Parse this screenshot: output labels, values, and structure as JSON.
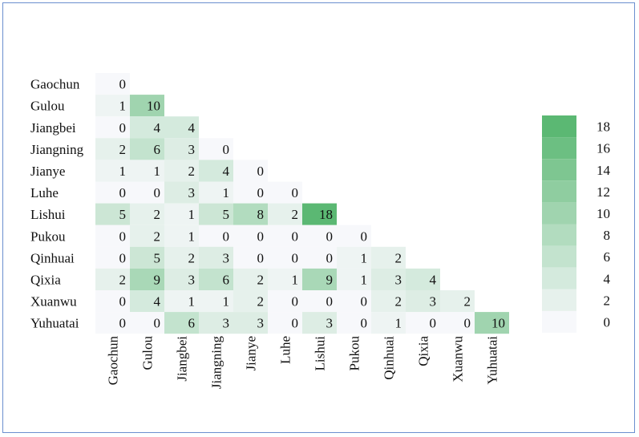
{
  "chart_data": {
    "type": "heatmap",
    "title": "",
    "xlabel": "",
    "ylabel": "",
    "labels": [
      "Gaochun",
      "Gulou",
      "Jiangbei",
      "Jiangning",
      "Jianye",
      "Luhe",
      "Lishui",
      "Pukou",
      "Qinhuai",
      "Qixia",
      "Xuanwu",
      "Yuhuatai"
    ],
    "matrix": [
      [
        0
      ],
      [
        1,
        10
      ],
      [
        0,
        4,
        4
      ],
      [
        2,
        6,
        3,
        0
      ],
      [
        1,
        1,
        2,
        4,
        0
      ],
      [
        0,
        0,
        3,
        1,
        0,
        0
      ],
      [
        5,
        2,
        1,
        5,
        8,
        2,
        18
      ],
      [
        0,
        2,
        1,
        0,
        0,
        0,
        0,
        0
      ],
      [
        0,
        5,
        2,
        3,
        0,
        0,
        0,
        1,
        2
      ],
      [
        2,
        9,
        3,
        6,
        2,
        1,
        9,
        1,
        3,
        4
      ],
      [
        0,
        4,
        1,
        1,
        2,
        0,
        0,
        0,
        2,
        3,
        2
      ],
      [
        0,
        0,
        6,
        3,
        3,
        0,
        3,
        0,
        1,
        0,
        0,
        10
      ]
    ],
    "colorbar": {
      "ticks": [
        18,
        16,
        14,
        12,
        10,
        8,
        6,
        4,
        2,
        0
      ],
      "min": 0,
      "max": 18,
      "min_color": "#f7f8fb",
      "max_color": "#5bb873"
    },
    "grid": false,
    "legend": "right"
  }
}
